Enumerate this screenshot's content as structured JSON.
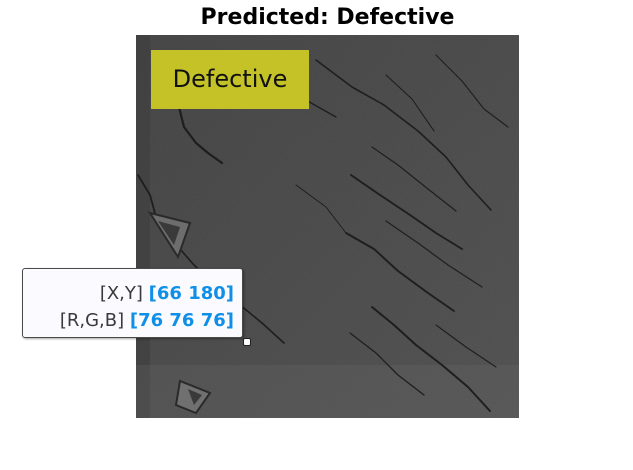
{
  "figure": {
    "title": "Predicted: Defective"
  },
  "image": {
    "overlay_label": "Defective",
    "overlay_color": "#c4c227"
  },
  "datatip": {
    "xy_label": "[X,Y]",
    "xy_value": "[66 180]",
    "rgb_label": "[R,G,B]",
    "rgb_value": "[76 76 76]",
    "value_color": "#0f8fe8"
  }
}
